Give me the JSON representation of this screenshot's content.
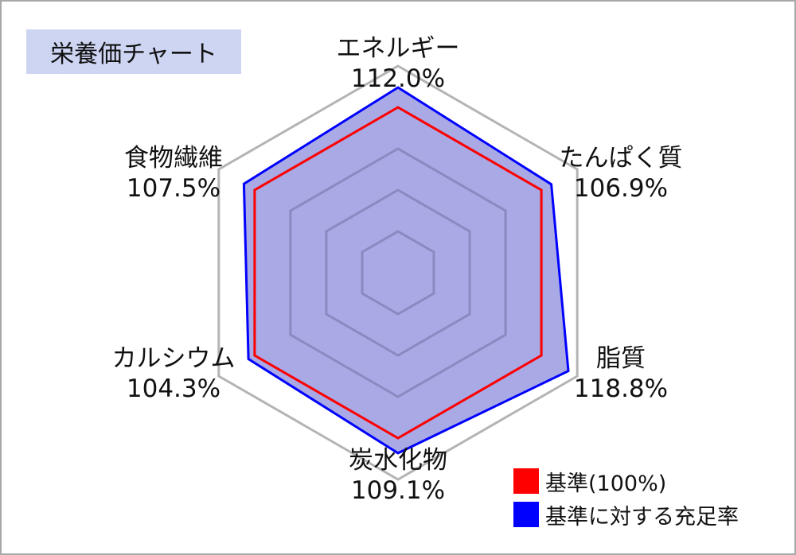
{
  "chart_data": {
    "type": "radar",
    "title": "栄養価チャート",
    "categories": [
      "エネルギー",
      "たんぱく質",
      "脂質",
      "炭水化物",
      "カルシウム",
      "食物繊維"
    ],
    "value_labels": [
      "112.0%",
      "106.9%",
      "118.8%",
      "109.1%",
      "104.3%",
      "107.5%"
    ],
    "series": [
      {
        "name": "基準(100%)",
        "values": [
          100,
          100,
          100,
          100,
          100,
          100
        ],
        "color": "#ff0000"
      },
      {
        "name": "基準に対する充足率",
        "values": [
          112.0,
          106.9,
          118.8,
          109.1,
          104.3,
          107.5
        ],
        "color": "#0000ff",
        "fill": "#a9a9e6"
      }
    ],
    "rmax": 125,
    "grid_levels": [
      25,
      50,
      75,
      100,
      125
    ],
    "grid_colors": {
      "outer": "#b4b4b4",
      "inner": "#8a8ac0"
    },
    "legend_position": "bottom-right"
  }
}
